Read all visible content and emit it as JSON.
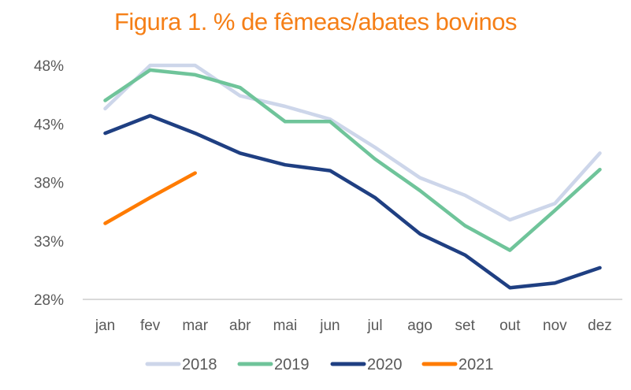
{
  "chart_data": {
    "type": "line",
    "title": "Figura 1. % de fêmeas/abates bovinos",
    "xlabel": "",
    "ylabel": "",
    "ylim": [
      0.28,
      0.48
    ],
    "yticks": [
      "28%",
      "33%",
      "38%",
      "43%",
      "48%"
    ],
    "ytick_values": [
      0.28,
      0.33,
      0.38,
      0.43,
      0.48
    ],
    "grid": false,
    "legend_position": "bottom",
    "categories": [
      "jan",
      "fev",
      "mar",
      "abr",
      "mai",
      "jun",
      "jul",
      "ago",
      "set",
      "out",
      "nov",
      "dez"
    ],
    "series": [
      {
        "name": "2018",
        "color": "#CDD6EA",
        "values": [
          0.443,
          0.48,
          0.48,
          0.454,
          0.445,
          0.434,
          0.41,
          0.384,
          0.369,
          0.348,
          0.362,
          0.405
        ]
      },
      {
        "name": "2019",
        "color": "#6FC49A",
        "values": [
          0.45,
          0.476,
          0.472,
          0.461,
          0.432,
          0.432,
          0.4,
          0.373,
          0.343,
          0.322,
          0.356,
          0.391
        ]
      },
      {
        "name": "2020",
        "color": "#1F3F82",
        "values": [
          0.422,
          0.437,
          0.422,
          0.405,
          0.395,
          0.39,
          0.367,
          0.336,
          0.318,
          0.29,
          0.294,
          0.307
        ]
      },
      {
        "name": "2021",
        "color": "#FF7B00",
        "values": [
          0.345,
          0.367,
          0.388
        ]
      }
    ]
  },
  "axis": {
    "line_color": "#D9D9D9"
  }
}
